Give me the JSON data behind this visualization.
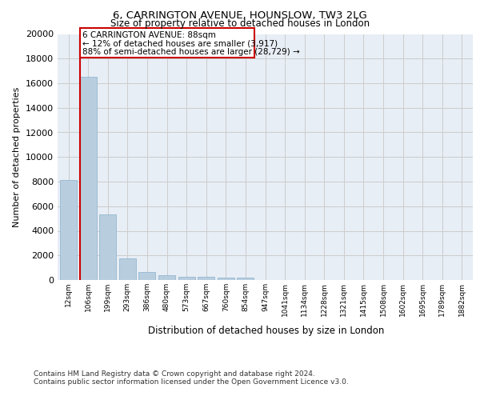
{
  "title1": "6, CARRINGTON AVENUE, HOUNSLOW, TW3 2LG",
  "title2": "Size of property relative to detached houses in London",
  "xlabel": "Distribution of detached houses by size in London",
  "ylabel": "Number of detached properties",
  "categories": [
    "12sqm",
    "106sqm",
    "199sqm",
    "293sqm",
    "386sqm",
    "480sqm",
    "573sqm",
    "667sqm",
    "760sqm",
    "854sqm",
    "947sqm",
    "1041sqm",
    "1134sqm",
    "1228sqm",
    "1321sqm",
    "1415sqm",
    "1508sqm",
    "1602sqm",
    "1695sqm",
    "1789sqm",
    "1882sqm"
  ],
  "values": [
    8100,
    16500,
    5350,
    1750,
    650,
    380,
    290,
    230,
    200,
    200,
    0,
    0,
    0,
    0,
    0,
    0,
    0,
    0,
    0,
    0,
    0
  ],
  "bar_color": "#b8cedf",
  "bar_edge_color": "#8ab0cc",
  "annotation_box_color": "#cc0000",
  "annotation_line1": "6 CARRINGTON AVENUE: 88sqm",
  "annotation_line2": "← 12% of detached houses are smaller (3,917)",
  "annotation_line3": "88% of semi-detached houses are larger (28,729) →",
  "vline_color": "#cc0000",
  "ylim": [
    0,
    20000
  ],
  "yticks": [
    0,
    2000,
    4000,
    6000,
    8000,
    10000,
    12000,
    14000,
    16000,
    18000,
    20000
  ],
  "grid_color": "#cccccc",
  "bg_color": "#e8eef5",
  "footer1": "Contains HM Land Registry data © Crown copyright and database right 2024.",
  "footer2": "Contains public sector information licensed under the Open Government Licence v3.0."
}
